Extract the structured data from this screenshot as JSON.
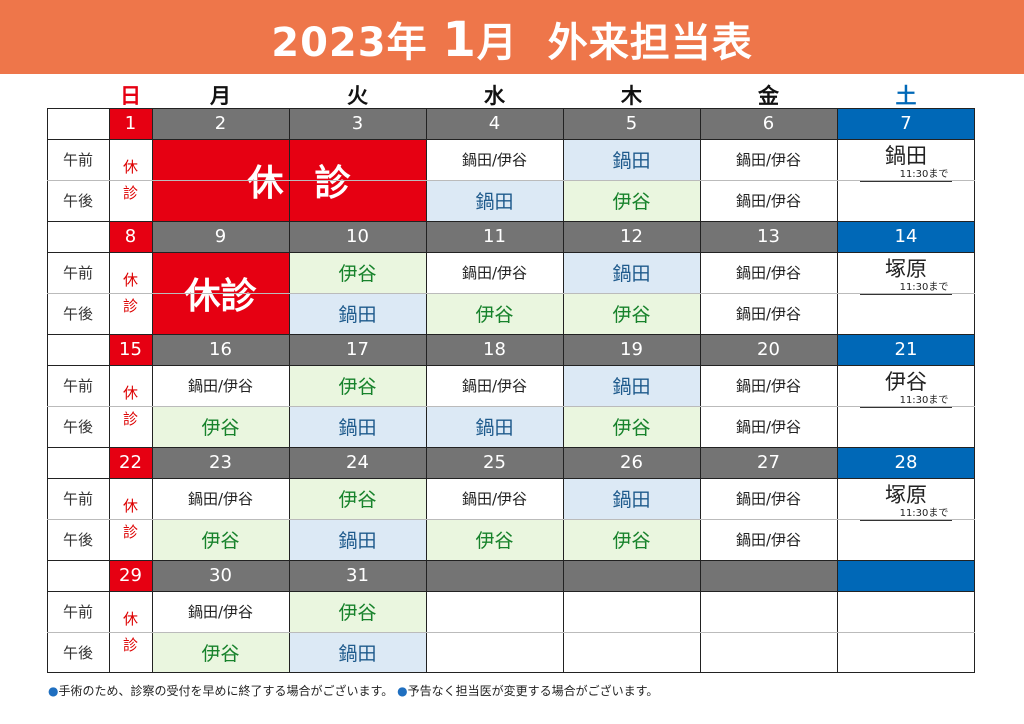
{
  "header": {
    "year_text": "2023年",
    "month_num": "1",
    "month_suffix": "月",
    "subtitle": "外来担当表"
  },
  "colors": {
    "header_bg": "#ee764a",
    "sunday_red": "#e60012",
    "saturday_blue": "#0068b7",
    "date_gray": "#747474"
  },
  "days_of_week": [
    "日",
    "月",
    "火",
    "水",
    "木",
    "金",
    "土"
  ],
  "row_labels": {
    "am": "午前",
    "pm": "午後"
  },
  "sunday_closed": [
    "休",
    "診"
  ],
  "closed_text": {
    "wide_first": "休",
    "wide_second": "診",
    "short": "休診"
  },
  "saturday_note": "11:30まで",
  "weeks": [
    {
      "dates": [
        "1",
        "2",
        "3",
        "4",
        "5",
        "6",
        "7"
      ],
      "am": [
        "",
        "",
        "",
        "鍋田/伊谷",
        "鍋田",
        "鍋田/伊谷",
        ""
      ],
      "pm": [
        "",
        "",
        "",
        "鍋田",
        "伊谷",
        "鍋田/伊谷",
        ""
      ],
      "saturday_doctor": "鍋田"
    },
    {
      "dates": [
        "8",
        "9",
        "10",
        "11",
        "12",
        "13",
        "14"
      ],
      "am": [
        "",
        "",
        "伊谷",
        "鍋田/伊谷",
        "鍋田",
        "鍋田/伊谷",
        ""
      ],
      "pm": [
        "",
        "",
        "鍋田",
        "伊谷",
        "伊谷",
        "鍋田/伊谷",
        ""
      ],
      "saturday_doctor": "塚原"
    },
    {
      "dates": [
        "15",
        "16",
        "17",
        "18",
        "19",
        "20",
        "21"
      ],
      "am": [
        "",
        "鍋田/伊谷",
        "伊谷",
        "鍋田/伊谷",
        "鍋田",
        "鍋田/伊谷",
        ""
      ],
      "pm": [
        "",
        "伊谷",
        "鍋田",
        "鍋田",
        "伊谷",
        "鍋田/伊谷",
        ""
      ],
      "saturday_doctor": "伊谷"
    },
    {
      "dates": [
        "22",
        "23",
        "24",
        "25",
        "26",
        "27",
        "28"
      ],
      "am": [
        "",
        "鍋田/伊谷",
        "伊谷",
        "鍋田/伊谷",
        "鍋田",
        "鍋田/伊谷",
        ""
      ],
      "pm": [
        "",
        "伊谷",
        "鍋田",
        "伊谷",
        "伊谷",
        "鍋田/伊谷",
        ""
      ],
      "saturday_doctor": "塚原"
    },
    {
      "dates": [
        "29",
        "30",
        "31",
        "",
        "",
        "",
        ""
      ],
      "am": [
        "",
        "鍋田/伊谷",
        "伊谷",
        "",
        "",
        "",
        ""
      ],
      "pm": [
        "",
        "伊谷",
        "鍋田",
        "",
        "",
        "",
        ""
      ],
      "saturday_doctor": ""
    }
  ],
  "footer": {
    "note1": "手術のため、診察の受付を早めに終了する場合がございます。",
    "note2": "予告なく担当医が変更する場合がございます。"
  }
}
